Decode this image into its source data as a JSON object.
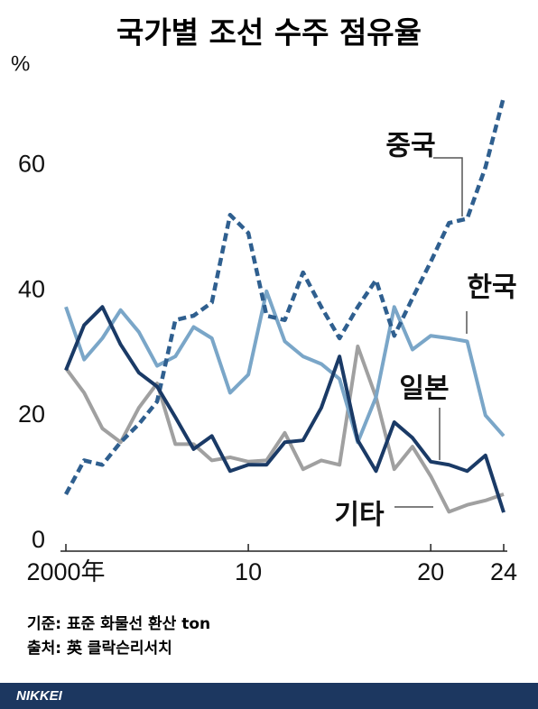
{
  "chart_data": {
    "type": "line",
    "title": "국가별 조선 수주 점유율",
    "y_unit": "%",
    "x": [
      2000,
      2001,
      2002,
      2003,
      2004,
      2005,
      2006,
      2007,
      2008,
      2009,
      2010,
      2011,
      2012,
      2013,
      2014,
      2015,
      2016,
      2017,
      2018,
      2019,
      2020,
      2021,
      2022,
      2023,
      2024
    ],
    "series": [
      {
        "name": "중국",
        "color": "#2f5f8f",
        "dashed": true,
        "values": [
          7.5,
          12.9,
          12.2,
          15.8,
          18.7,
          22.3,
          35.3,
          36,
          38.1,
          52.1,
          49.2,
          36,
          35.3,
          42.9,
          37.4,
          32.4,
          37.4,
          41.7,
          32.8,
          38.8,
          44.6,
          50.8,
          51.5,
          59.7,
          70.9
        ]
      },
      {
        "name": "한국",
        "color": "#7aa6c8",
        "values": [
          37.4,
          29,
          32.4,
          36.9,
          33.4,
          28,
          29.5,
          34.2,
          32.4,
          23.7,
          26.6,
          39.9,
          31.9,
          29.5,
          28.3,
          25.9,
          15.8,
          23,
          37.4,
          30.6,
          32.8,
          32.4,
          31.9,
          20.1,
          16.8
        ]
      },
      {
        "name": "일본",
        "color": "#1a3a66",
        "values": [
          27.3,
          34.5,
          37.4,
          31.4,
          26.9,
          24.7,
          19.8,
          14.7,
          16.8,
          11.2,
          12.2,
          12.2,
          15.8,
          16.1,
          21.3,
          29.5,
          16.1,
          11.2,
          19,
          16.5,
          12.7,
          12.2,
          11.2,
          13.7,
          4.6
        ]
      },
      {
        "name": "기타",
        "color": "#a0a0a0",
        "values": [
          27.6,
          23.7,
          18,
          15.8,
          21.3,
          25.2,
          15.5,
          15.5,
          12.9,
          13.4,
          12.7,
          12.9,
          17.3,
          11.5,
          12.9,
          12.2,
          31.1,
          23,
          11.5,
          15.1,
          10.4,
          4.7,
          5.8,
          6.5,
          7.5
        ]
      }
    ],
    "xlim": [
      2000,
      2024
    ],
    "xticks": [
      {
        "value": 2000,
        "label": "2000年"
      },
      {
        "value": 2010,
        "label": "10"
      },
      {
        "value": 2020,
        "label": "20"
      },
      {
        "value": 2024,
        "label": "24"
      }
    ],
    "ylim": [
      0,
      72
    ],
    "yticks": [
      0,
      20,
      40,
      60
    ],
    "notes": [
      "기준: 표준 화물선 환산 ton",
      "출처: 英 클락슨리서치"
    ],
    "source_brand": "NIKKEI"
  }
}
